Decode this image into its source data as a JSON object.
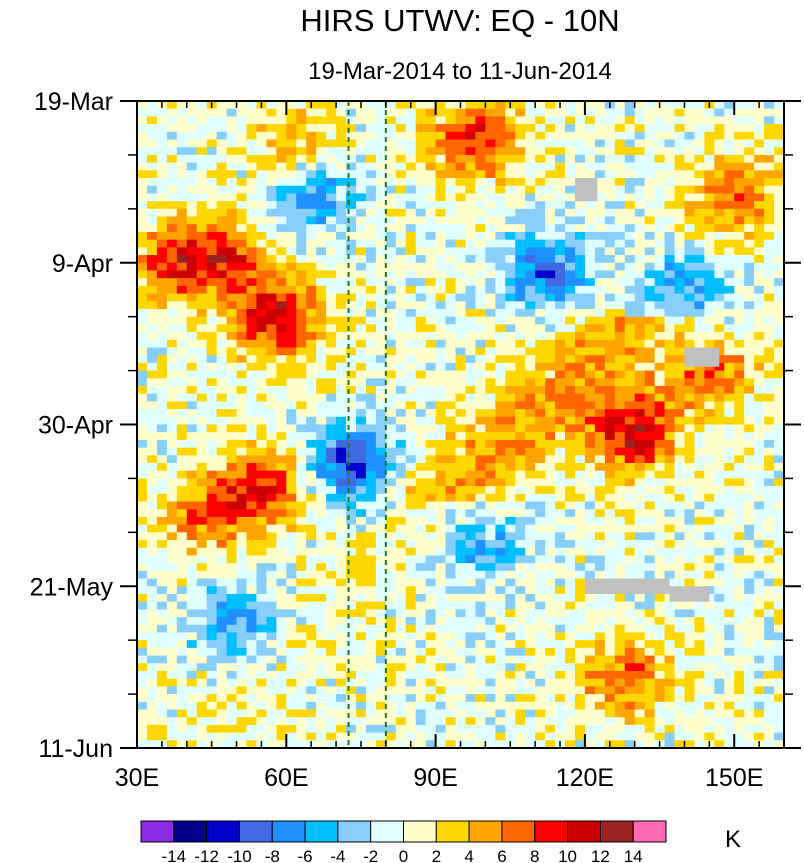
{
  "chart_data": {
    "type": "heatmap",
    "title": "HIRS UTWV: EQ - 10N",
    "subtitle": "19-Mar-2014 to 11-Jun-2014",
    "x_ticks": [
      {
        "value": 30,
        "label": "30E"
      },
      {
        "value": 60,
        "label": "60E"
      },
      {
        "value": 90,
        "label": "90E"
      },
      {
        "value": 120,
        "label": "120E"
      },
      {
        "value": 150,
        "label": "150E"
      }
    ],
    "xlim": [
      30,
      160
    ],
    "y_ticks": [
      {
        "day": 0,
        "label": "19-Mar"
      },
      {
        "day": 21,
        "label": "9-Apr"
      },
      {
        "day": 42,
        "label": "30-Apr"
      },
      {
        "day": 63,
        "label": "21-May"
      },
      {
        "day": 84,
        "label": "11-Jun"
      }
    ],
    "ylim_days": [
      0,
      84
    ],
    "reference_lines_lon": [
      72.5,
      80
    ],
    "colorbar": {
      "unit": "K",
      "levels": [
        -14,
        -12,
        -10,
        -8,
        -6,
        -4,
        -2,
        0,
        2,
        4,
        6,
        8,
        10,
        12,
        14
      ],
      "labels": [
        "-14",
        "-12",
        "-10",
        "-8",
        "-6",
        "-4",
        "-2",
        "0",
        "2",
        "4",
        "6",
        "8",
        "10",
        "12",
        "14"
      ],
      "colors": [
        "#8a2be2",
        "#00008b",
        "#0000cd",
        "#4169e1",
        "#1e90ff",
        "#00bfff",
        "#87cefa",
        "#e0ffff",
        "#ffffcc",
        "#ffd700",
        "#ffa500",
        "#ff6600",
        "#ff0000",
        "#cc0000",
        "#992222",
        "#ff69b4"
      ]
    },
    "missing_color": "#c0c0c0",
    "anomaly_features": [
      {
        "lon": 58,
        "day": 28,
        "value": 11,
        "desc": "warm band"
      },
      {
        "lon": 48,
        "day": 20,
        "value": 7
      },
      {
        "lon": 38,
        "day": 21,
        "value": 8
      },
      {
        "lon": 55,
        "day": 50,
        "value": 9
      },
      {
        "lon": 44,
        "day": 54,
        "value": 6
      },
      {
        "lon": 98,
        "day": 5,
        "value": 9
      },
      {
        "lon": 62,
        "day": 6,
        "value": 5
      },
      {
        "lon": 130,
        "day": 43,
        "value": 11
      },
      {
        "lon": 145,
        "day": 35,
        "value": 7
      },
      {
        "lon": 150,
        "day": 12,
        "value": 6
      },
      {
        "lon": 128,
        "day": 75,
        "value": 7
      },
      {
        "lon": 73,
        "day": 47,
        "value": -10
      },
      {
        "lon": 50,
        "day": 68,
        "value": -6
      },
      {
        "lon": 65,
        "day": 12,
        "value": -7
      },
      {
        "lon": 112,
        "day": 22,
        "value": -8
      },
      {
        "lon": 140,
        "day": 24,
        "value": -7
      },
      {
        "lon": 100,
        "day": 58,
        "value": -5
      }
    ]
  }
}
